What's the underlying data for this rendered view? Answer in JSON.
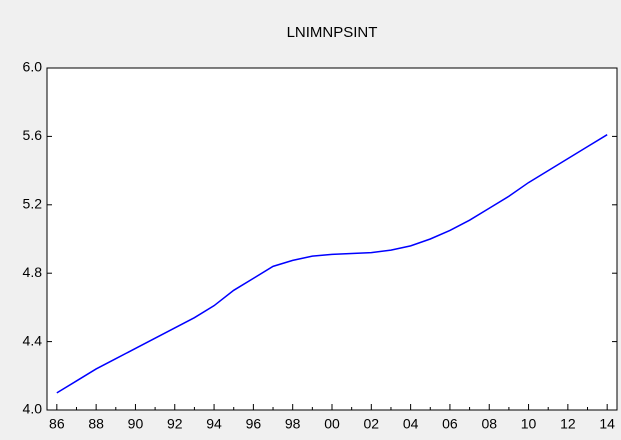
{
  "chart_data": {
    "type": "line",
    "title": "LNIMNPSINT",
    "categories": [
      "86",
      null,
      "88",
      null,
      "90",
      null,
      "92",
      null,
      "94",
      null,
      "96",
      null,
      "98",
      null,
      "00",
      null,
      "02",
      null,
      "04",
      null,
      "06",
      null,
      "08",
      null,
      "10",
      null,
      "12",
      null,
      "14"
    ],
    "series": [
      {
        "name": "LNIMNPSINT",
        "color": "#0000ff",
        "values": [
          4.1,
          4.17,
          4.24,
          4.3,
          4.36,
          4.42,
          4.48,
          4.54,
          4.61,
          4.7,
          4.77,
          4.84,
          4.875,
          4.9,
          4.91,
          4.915,
          4.92,
          4.935,
          4.96,
          5.0,
          5.05,
          5.11,
          5.18,
          5.25,
          5.33,
          5.4,
          5.47,
          5.54,
          5.61
        ]
      }
    ],
    "ylim": [
      4.0,
      6.0
    ],
    "yticks": [
      {
        "value": 4.0,
        "label": "4.0"
      },
      4.4,
      4.8,
      5.2,
      5.6,
      {
        "value": 6.0,
        "label": "6.0"
      }
    ],
    "grid": false
  }
}
